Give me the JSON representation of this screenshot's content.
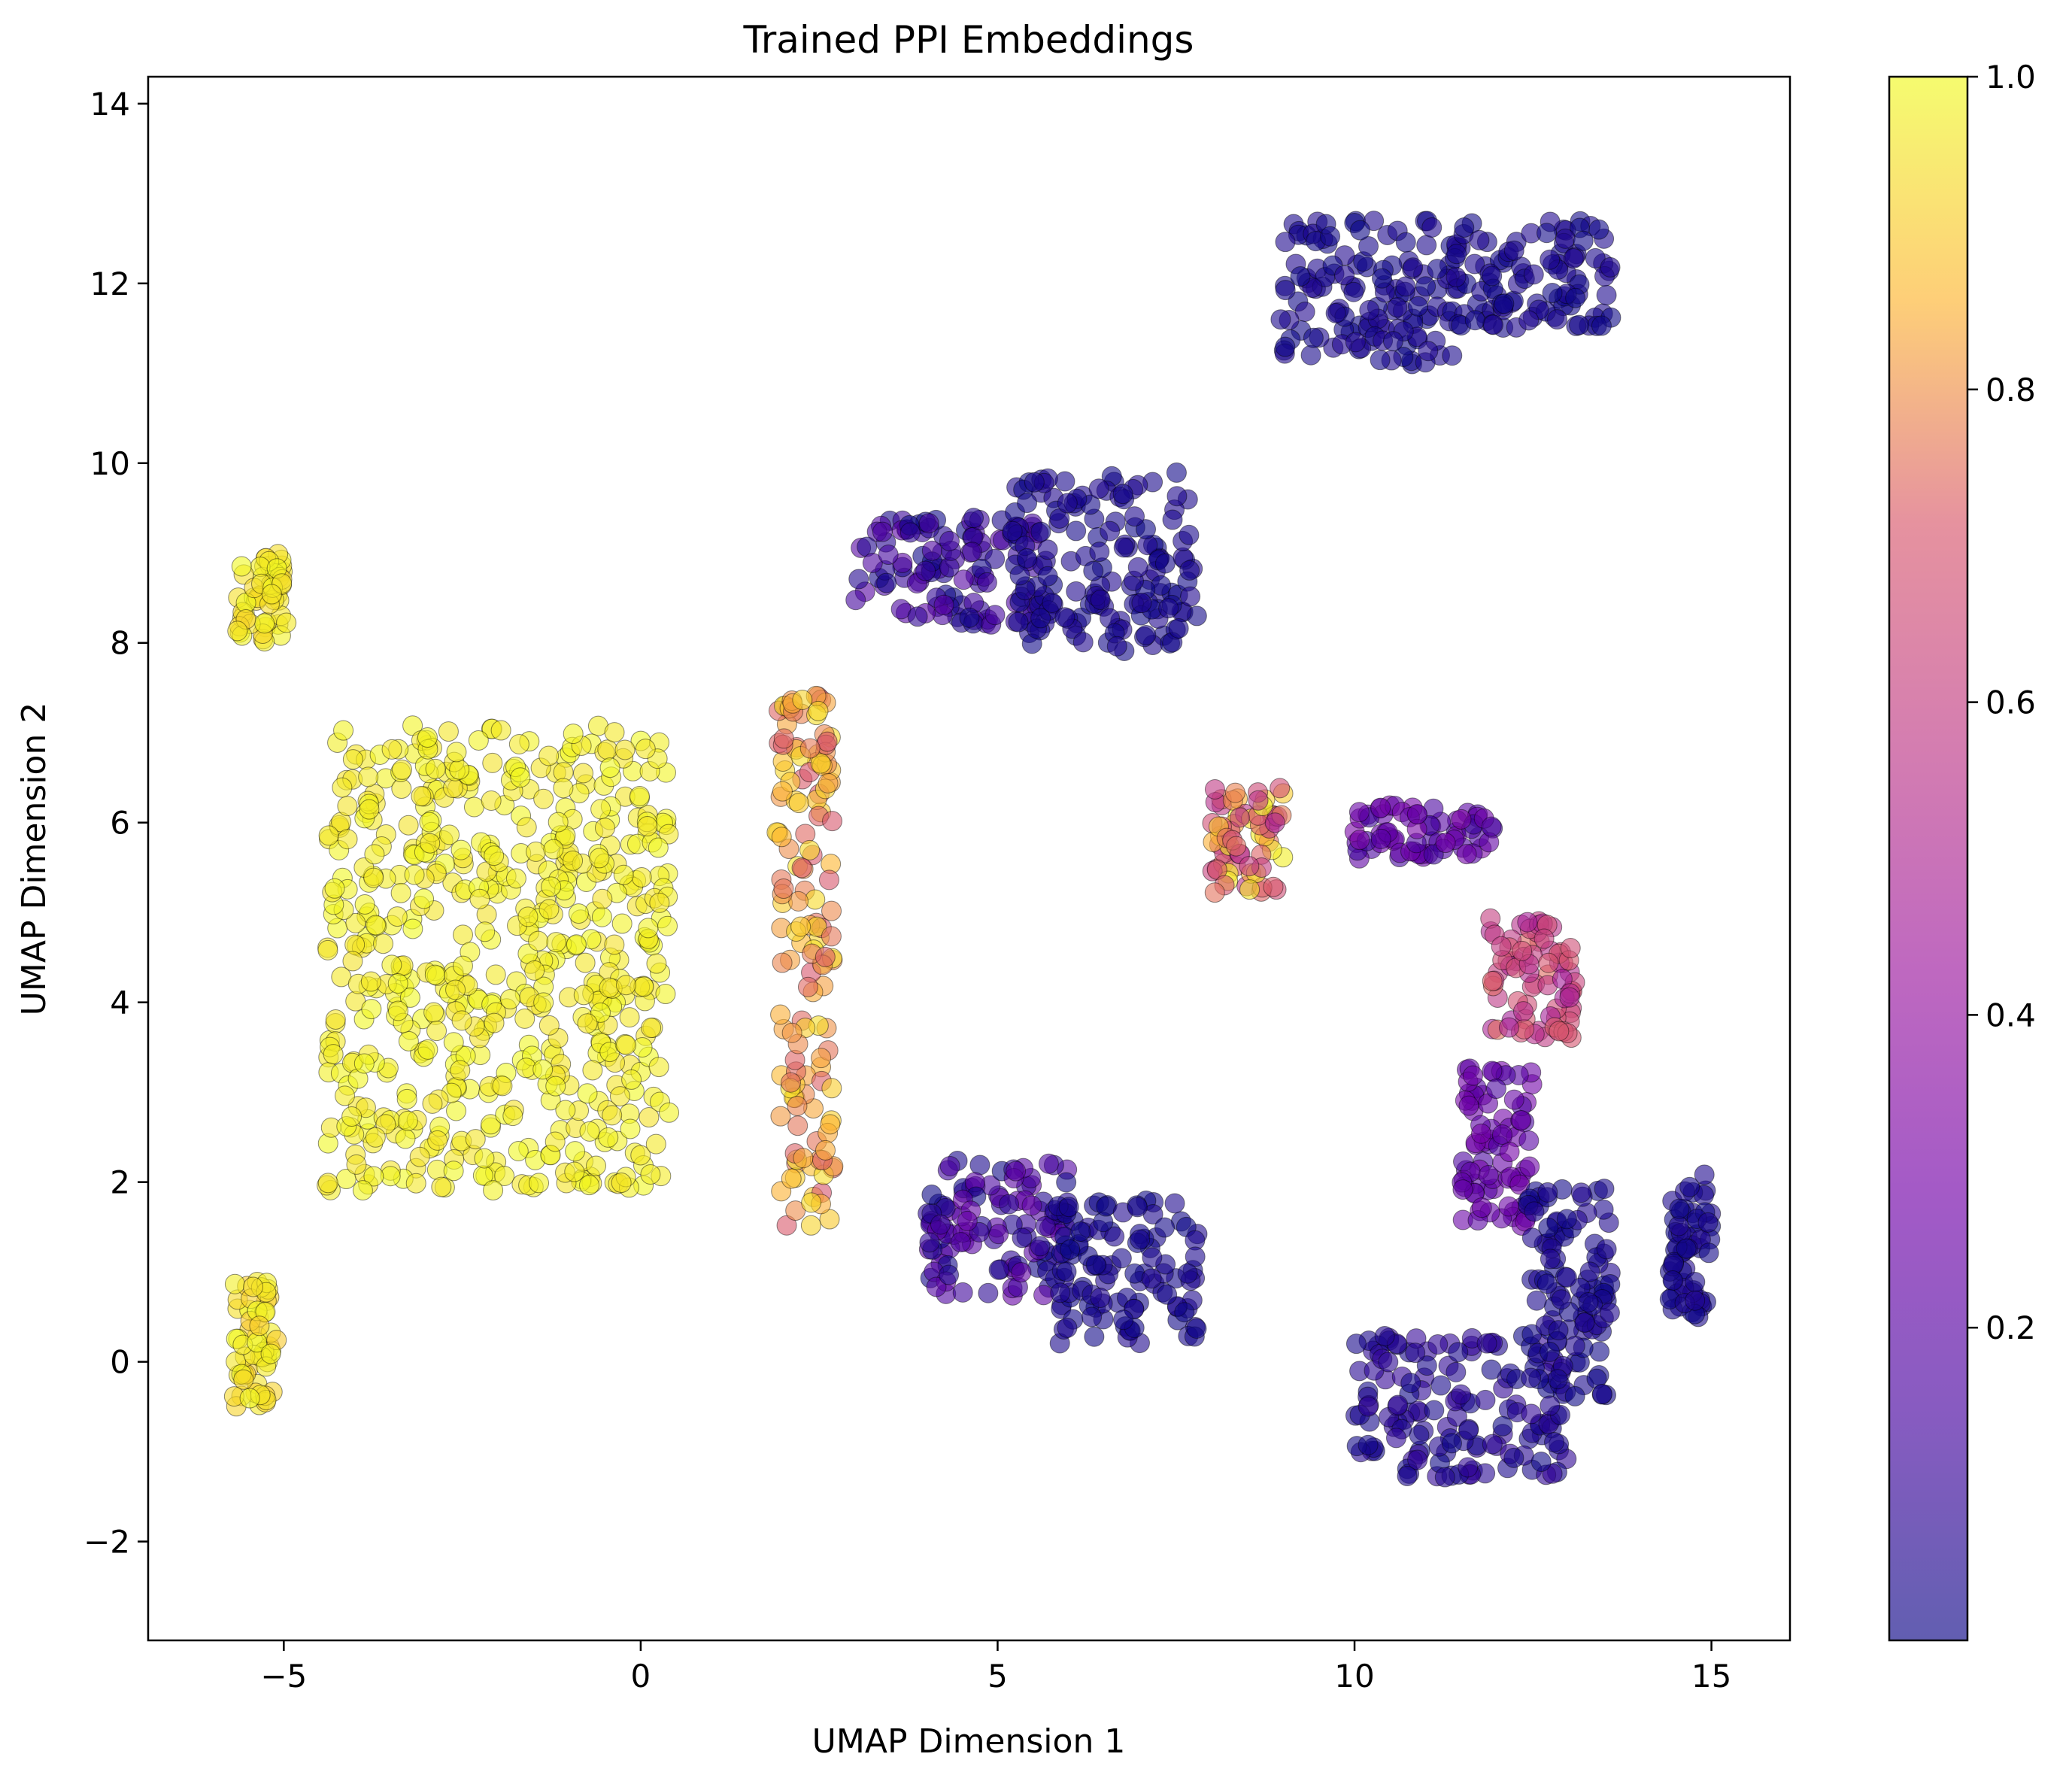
{
  "chart_data": {
    "type": "scatter",
    "title": "Trained PPI Embeddings",
    "xlabel": "UMAP Dimension 1",
    "ylabel": "UMAP Dimension 2",
    "xlim": [
      -6.9,
      16.1
    ],
    "ylim": [
      -3.1,
      14.3
    ],
    "xticks": [
      -5,
      0,
      5,
      10,
      15
    ],
    "yticks": [
      -2,
      0,
      2,
      4,
      6,
      8,
      10,
      12,
      14
    ],
    "xtick_labels": [
      "−5",
      "0",
      "5",
      "10",
      "15"
    ],
    "ytick_labels": [
      "−2",
      "0",
      "2",
      "4",
      "6",
      "8",
      "10",
      "12",
      "14"
    ],
    "colorbar": {
      "colormap": "plasma",
      "range": [
        0.0,
        1.0
      ],
      "ticks": [
        0.2,
        0.4,
        0.6,
        0.8,
        1.0
      ],
      "tick_labels": [
        "0.2",
        "0.4",
        "0.6",
        "0.8",
        "1.0"
      ]
    },
    "grid": false,
    "legend": "none",
    "clusters": [
      {
        "center": [
          -2.0,
          4.5
        ],
        "spread": [
          2.4,
          2.6
        ],
        "value_range": [
          0.95,
          1.0
        ]
      },
      {
        "center": [
          -5.3,
          8.5
        ],
        "spread": [
          0.35,
          0.5
        ],
        "value_range": [
          0.92,
          1.0
        ]
      },
      {
        "center": [
          -5.4,
          0.2
        ],
        "spread": [
          0.3,
          0.7
        ],
        "value_range": [
          0.9,
          1.0
        ]
      },
      {
        "center": [
          2.3,
          4.5
        ],
        "spread": [
          0.4,
          3.0
        ],
        "value_range": [
          0.7,
          0.95
        ]
      },
      {
        "center": [
          4.3,
          8.8
        ],
        "spread": [
          1.3,
          0.6
        ],
        "value_range": [
          0.0,
          0.2
        ]
      },
      {
        "center": [
          6.5,
          8.9
        ],
        "spread": [
          1.3,
          1.0
        ],
        "value_range": [
          0.0,
          0.05
        ]
      },
      {
        "center": [
          10.2,
          11.9
        ],
        "spread": [
          1.3,
          0.8
        ],
        "value_range": [
          0.0,
          0.05
        ]
      },
      {
        "center": [
          12.5,
          12.1
        ],
        "spread": [
          1.1,
          0.6
        ],
        "value_range": [
          0.0,
          0.05
        ]
      },
      {
        "center": [
          8.5,
          5.8
        ],
        "spread": [
          0.5,
          0.6
        ],
        "value_range": [
          0.5,
          1.0
        ]
      },
      {
        "center": [
          11.0,
          5.9
        ],
        "spread": [
          1.0,
          0.3
        ],
        "value_range": [
          0.1,
          0.35
        ]
      },
      {
        "center": [
          12.5,
          4.3
        ],
        "spread": [
          0.6,
          0.7
        ],
        "value_range": [
          0.45,
          0.75
        ]
      },
      {
        "center": [
          12.0,
          2.4
        ],
        "spread": [
          0.5,
          0.9
        ],
        "value_range": [
          0.15,
          0.3
        ]
      },
      {
        "center": [
          5.0,
          1.5
        ],
        "spread": [
          1.0,
          0.8
        ],
        "value_range": [
          0.0,
          0.25
        ]
      },
      {
        "center": [
          6.8,
          1.0
        ],
        "spread": [
          1.0,
          0.8
        ],
        "value_range": [
          0.0,
          0.05
        ]
      },
      {
        "center": [
          11.5,
          -0.5
        ],
        "spread": [
          1.5,
          0.8
        ],
        "value_range": [
          0.0,
          0.1
        ]
      },
      {
        "center": [
          13.0,
          0.8
        ],
        "spread": [
          0.6,
          1.2
        ],
        "value_range": [
          0.0,
          0.05
        ]
      },
      {
        "center": [
          14.7,
          1.3
        ],
        "spread": [
          0.3,
          0.8
        ],
        "value_range": [
          0.0,
          0.05
        ]
      }
    ]
  }
}
